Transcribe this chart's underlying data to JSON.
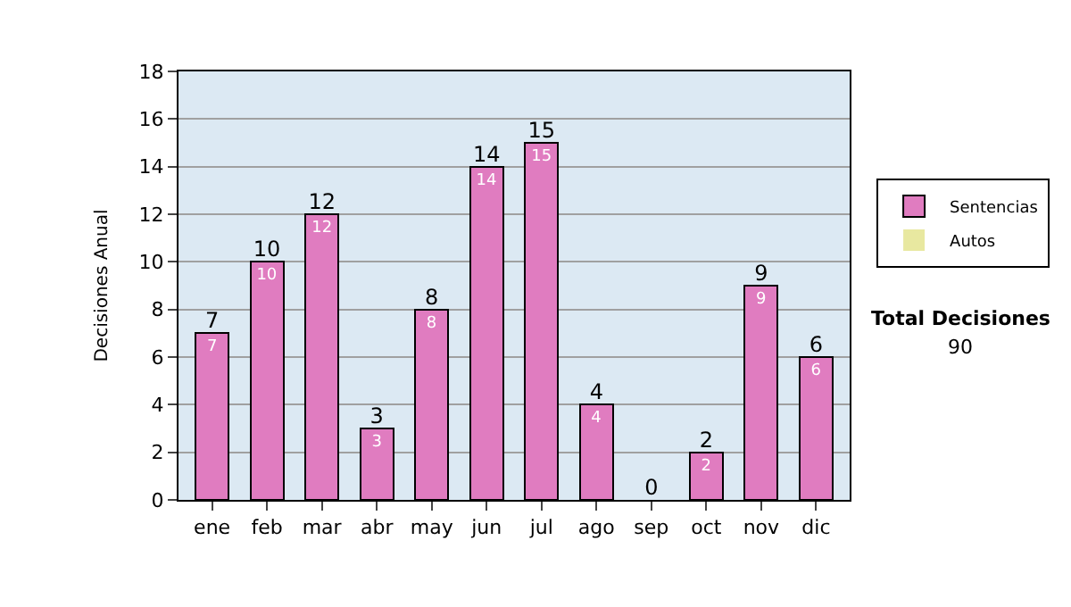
{
  "chart_data": {
    "type": "bar",
    "stacked": true,
    "categories": [
      "ene",
      "feb",
      "mar",
      "abr",
      "may",
      "jun",
      "jul",
      "ago",
      "sep",
      "oct",
      "nov",
      "dic"
    ],
    "series": [
      {
        "name": "Sentencias",
        "color": "#e07cc0",
        "values": [
          7,
          10,
          12,
          3,
          8,
          14,
          15,
          4,
          0,
          2,
          9,
          6
        ],
        "value_labels": [
          "7",
          "10",
          "12",
          "3",
          "8",
          "14",
          "15",
          "4",
          null,
          "2",
          "9",
          "6"
        ]
      },
      {
        "name": "Autos",
        "color": "#e8e8a0",
        "values": [
          0,
          0,
          0,
          0,
          0,
          0,
          0,
          0,
          0,
          0,
          0,
          0
        ]
      }
    ],
    "totals": [
      "7",
      "10",
      "12",
      "3",
      "8",
      "14",
      "15",
      "4",
      "0",
      "2",
      "9",
      "6"
    ],
    "ylabel": "Decisiones Anual",
    "ylim": [
      0,
      18
    ],
    "yticks": [
      0,
      2,
      4,
      6,
      8,
      10,
      12,
      14,
      16,
      18
    ],
    "grid": "y",
    "legend": "right",
    "annotations": [
      "Total Decisiones",
      "90"
    ]
  }
}
